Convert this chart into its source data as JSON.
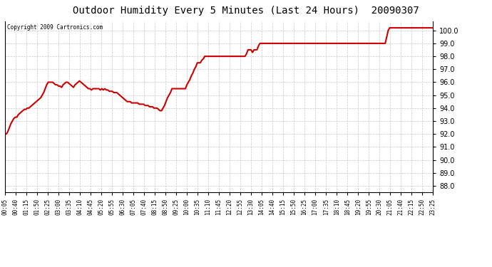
{
  "title": "Outdoor Humidity Every 5 Minutes (Last 24 Hours)  20090307",
  "copyright": "Copyright 2009 Cartronics.com",
  "ylim": [
    87.5,
    100.7
  ],
  "yticks": [
    88.0,
    89.0,
    90.0,
    91.0,
    92.0,
    93.0,
    94.0,
    95.0,
    96.0,
    97.0,
    98.0,
    99.0,
    100.0
  ],
  "line_color": "#cc0000",
  "line_width": 1.5,
  "bg_color": "#ffffff",
  "grid_color": "#c8c8c8",
  "xtick_labels": [
    "00:05",
    "00:40",
    "01:15",
    "01:50",
    "02:25",
    "03:00",
    "03:35",
    "04:10",
    "04:45",
    "05:20",
    "05:55",
    "06:30",
    "07:05",
    "07:40",
    "08:15",
    "08:50",
    "09:25",
    "10:00",
    "10:35",
    "11:10",
    "11:45",
    "12:20",
    "12:55",
    "13:30",
    "14:05",
    "14:40",
    "15:15",
    "15:50",
    "16:25",
    "17:00",
    "17:35",
    "18:10",
    "18:45",
    "19:20",
    "19:55",
    "20:30",
    "21:05",
    "21:40",
    "22:15",
    "22:50",
    "23:25"
  ],
  "humidity": [
    92.0,
    92.0,
    92.2,
    92.5,
    92.8,
    93.0,
    93.2,
    93.3,
    93.3,
    93.5,
    93.6,
    93.7,
    93.8,
    93.9,
    93.9,
    94.0,
    94.0,
    94.1,
    94.2,
    94.3,
    94.4,
    94.5,
    94.6,
    94.7,
    94.8,
    95.0,
    95.2,
    95.5,
    95.8,
    96.0,
    96.0,
    96.0,
    96.0,
    95.9,
    95.8,
    95.8,
    95.7,
    95.7,
    95.6,
    95.8,
    95.9,
    96.0,
    96.0,
    95.9,
    95.8,
    95.7,
    95.6,
    95.8,
    95.9,
    96.0,
    96.1,
    96.0,
    95.9,
    95.8,
    95.7,
    95.6,
    95.5,
    95.5,
    95.4,
    95.5,
    95.5,
    95.5,
    95.5,
    95.5,
    95.4,
    95.5,
    95.4,
    95.5,
    95.4,
    95.4,
    95.3,
    95.3,
    95.3,
    95.2,
    95.2,
    95.2,
    95.1,
    95.0,
    94.9,
    94.8,
    94.7,
    94.6,
    94.5,
    94.5,
    94.5,
    94.4,
    94.4,
    94.4,
    94.4,
    94.4,
    94.3,
    94.3,
    94.3,
    94.3,
    94.2,
    94.2,
    94.2,
    94.1,
    94.1,
    94.1,
    94.0,
    94.0,
    94.0,
    93.9,
    93.8,
    93.8,
    94.0,
    94.2,
    94.5,
    94.8,
    95.0,
    95.2,
    95.5,
    95.5,
    95.5,
    95.5,
    95.5,
    95.5,
    95.5,
    95.5,
    95.5,
    95.5,
    95.8,
    96.0,
    96.2,
    96.5,
    96.7,
    97.0,
    97.2,
    97.5,
    97.5,
    97.5,
    97.7,
    97.8,
    98.0,
    98.0,
    98.0,
    98.0,
    98.0,
    98.0,
    98.0,
    98.0,
    98.0,
    98.0,
    98.0,
    98.0,
    98.0,
    98.0,
    98.0,
    98.0,
    98.0,
    98.0,
    98.0,
    98.0,
    98.0,
    98.0,
    98.0,
    98.0,
    98.0,
    98.0,
    98.0,
    98.0,
    98.2,
    98.5,
    98.5,
    98.5,
    98.3,
    98.5,
    98.5,
    98.5,
    98.8,
    99.0,
    99.0,
    99.0,
    99.0,
    99.0,
    99.0,
    99.0,
    99.0,
    99.0,
    99.0,
    99.0,
    99.0,
    99.0,
    99.0,
    99.0,
    99.0,
    99.0,
    99.0,
    99.0,
    99.0,
    99.0,
    99.0,
    99.0,
    99.0,
    99.0,
    99.0,
    99.0,
    99.0,
    99.0,
    99.0,
    99.0,
    99.0,
    99.0,
    99.0,
    99.0,
    99.0,
    99.0,
    99.0,
    99.0,
    99.0,
    99.0,
    99.0,
    99.0,
    99.0,
    99.0,
    99.0,
    99.0,
    99.0,
    99.0,
    99.0,
    99.0,
    99.0,
    99.0,
    99.0,
    99.0,
    99.0,
    99.0,
    99.0,
    99.0,
    99.0,
    99.0,
    99.0,
    99.0,
    99.0,
    99.0,
    99.0,
    99.0,
    99.0,
    99.0,
    99.0,
    99.0,
    99.0,
    99.0,
    99.0,
    99.0,
    99.0,
    99.0,
    99.0,
    99.0,
    99.0,
    99.0,
    99.0,
    99.0,
    99.0,
    99.0,
    99.5,
    100.0,
    100.2,
    100.2,
    100.2,
    100.2,
    100.2,
    100.2,
    100.2,
    100.2,
    100.2,
    100.2,
    100.2,
    100.2,
    100.2,
    100.2,
    100.2,
    100.2,
    100.2,
    100.2,
    100.2,
    100.2,
    100.2,
    100.2,
    100.2,
    100.2,
    100.2,
    100.2,
    100.2,
    100.2,
    100.2,
    100.2
  ]
}
